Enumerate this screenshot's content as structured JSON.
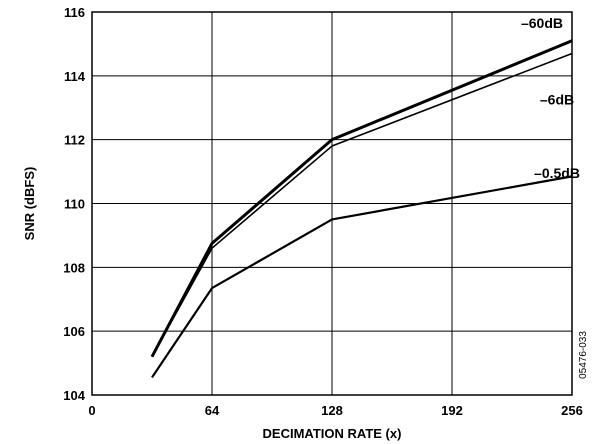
{
  "chart_data": {
    "type": "line",
    "xlabel": "DECIMATION RATE (x)",
    "ylabel": "SNR (dBFS)",
    "xlim": [
      0,
      256
    ],
    "ylim": [
      104,
      116
    ],
    "xticks": [
      0,
      64,
      128,
      192,
      256
    ],
    "yticks": [
      104,
      106,
      108,
      110,
      112,
      114,
      116
    ],
    "x_tick_labels": [
      "0",
      "64",
      "128",
      "192",
      "256"
    ],
    "y_tick_labels": [
      "104",
      "106",
      "108",
      "110",
      "112",
      "114",
      "116"
    ],
    "grid": true,
    "series": [
      {
        "name": "–60dB",
        "x": [
          32,
          64,
          128,
          256
        ],
        "y": [
          105.2,
          108.75,
          112.0,
          115.1
        ]
      },
      {
        "name": "–6dB",
        "x": [
          32,
          64,
          128,
          256
        ],
        "y": [
          105.2,
          108.6,
          111.8,
          114.7
        ]
      },
      {
        "name": "–0.5dB",
        "x": [
          32,
          64,
          128,
          256
        ],
        "y": [
          104.55,
          107.35,
          109.5,
          110.85
        ]
      }
    ],
    "figure_code": "05476-033"
  },
  "style": {
    "line_color": "#000000",
    "grid_color": "#000000",
    "background": "#ffffff"
  }
}
